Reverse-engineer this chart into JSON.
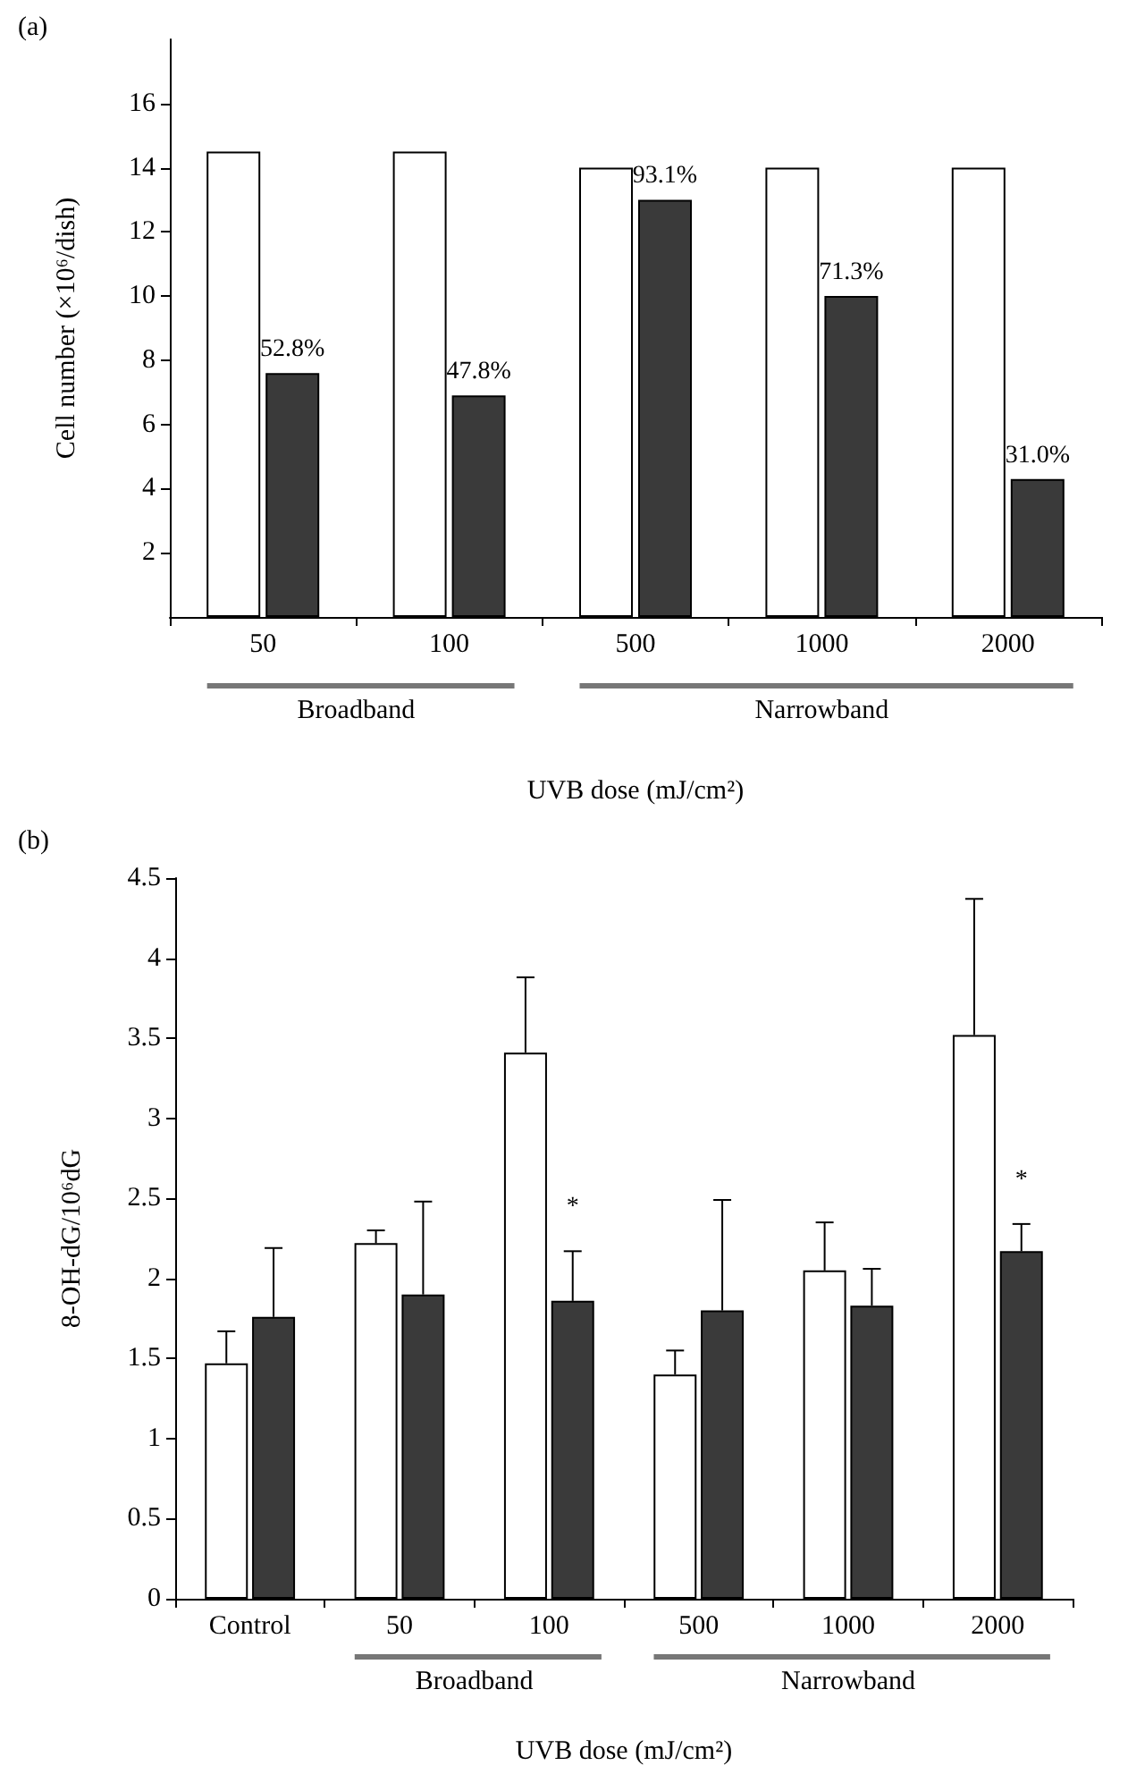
{
  "chart_data": [
    {
      "type": "bar",
      "title": "(a)",
      "xlabel": "UVB dose (mJ/cm²)",
      "ylabel": "Cell number (×10⁶/dish)",
      "categories": [
        "50",
        "100",
        "500",
        "1000",
        "2000"
      ],
      "ylim": [
        0,
        18
      ],
      "yticks": [
        2,
        4,
        6,
        8,
        10,
        12,
        14,
        16
      ],
      "series": [
        {
          "color": "#ffffff",
          "values": [
            14.5,
            14.5,
            14.0,
            14.0,
            14.0
          ]
        },
        {
          "color": "#3a3a3a",
          "values": [
            7.6,
            6.9,
            13.0,
            10.0,
            4.3
          ]
        }
      ],
      "annotations": [
        "Broadband",
        "Narrowband",
        {
          "text": "52.8%",
          "x": "50",
          "y": 7.6
        },
        {
          "text": "47.8%",
          "x": "100",
          "y": 6.9
        },
        {
          "text": "93.1%",
          "x": "500",
          "y": 13.0
        },
        {
          "text": "71.3%",
          "x": "1000",
          "y": 10.0
        },
        {
          "text": "31.0%",
          "x": "2000",
          "y": 4.3
        }
      ]
    },
    {
      "type": "bar",
      "title": "(b)",
      "xlabel": "UVB dose (mJ/cm²)",
      "ylabel": "8-OH-dG/10⁶dG",
      "categories": [
        "Control",
        "50",
        "100",
        "500",
        "1000",
        "2000"
      ],
      "ylim": [
        0,
        4.5
      ],
      "yticks": [
        0,
        0.5,
        1,
        1.5,
        2,
        2.5,
        3,
        3.5,
        4,
        4.5
      ],
      "series": [
        {
          "color": "#ffffff",
          "values": [
            1.47,
            2.22,
            3.41,
            1.4,
            2.05,
            3.52
          ],
          "errors": [
            [
              1.47,
              1.67
            ],
            [
              2.22,
              2.3
            ],
            [
              3.41,
              3.88
            ],
            [
              1.4,
              1.55
            ],
            [
              2.05,
              2.35
            ],
            [
              3.52,
              4.37
            ]
          ]
        },
        {
          "color": "#3a3a3a",
          "values": [
            1.76,
            1.9,
            1.86,
            1.8,
            1.83,
            2.17
          ],
          "errors": [
            [
              1.76,
              2.19
            ],
            [
              1.9,
              2.48
            ],
            [
              1.86,
              2.17
            ],
            [
              1.8,
              2.49
            ],
            [
              1.83,
              2.06
            ],
            [
              2.17,
              2.34
            ]
          ]
        }
      ],
      "annotations": [
        "Broadband",
        "Narrowband",
        {
          "text": "*",
          "x": "100",
          "y": 2.3
        },
        {
          "text": "*",
          "x": "2000",
          "y": 2.47
        }
      ]
    }
  ]
}
